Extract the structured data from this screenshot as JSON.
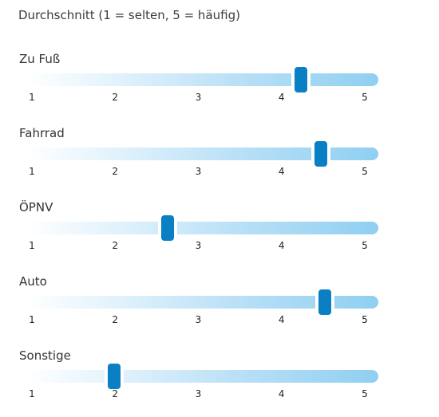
{
  "title": "Durchschnitt (1 = selten, 5 = häufig)",
  "chart_data": {
    "type": "slider",
    "scale": {
      "min": 1,
      "max": 5,
      "ticks": [
        "1",
        "2",
        "3",
        "4",
        "5"
      ]
    },
    "series": [
      {
        "name": "Zu Fuß",
        "value": 4.23
      },
      {
        "name": "Fahrrad",
        "value": 4.47
      },
      {
        "name": "ÖPNV",
        "value": 2.63
      },
      {
        "name": "Auto",
        "value": 4.52
      },
      {
        "name": "Sonstige",
        "value": 1.99
      }
    ]
  },
  "colors": {
    "thumb": "#0b7fc4",
    "track_start": "#ffffff",
    "track_end": "#8fcff1"
  }
}
